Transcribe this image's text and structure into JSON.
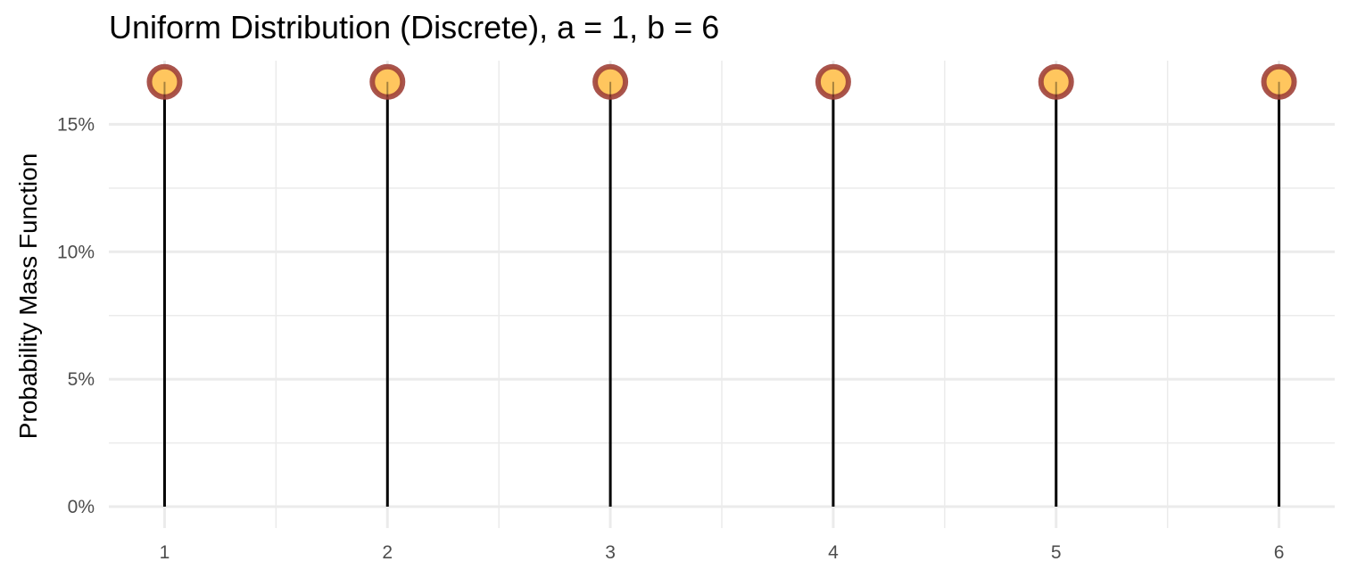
{
  "chart_data": {
    "type": "lollipop",
    "title": "Uniform Distribution (Discrete), a = 1, b = 6",
    "xlabel": "",
    "ylabel": "Probability Mass Function",
    "x": [
      1,
      2,
      3,
      4,
      5,
      6
    ],
    "values": [
      0.1667,
      0.1667,
      0.1667,
      0.1667,
      0.1667,
      0.1667
    ],
    "x_ticks": [
      "1",
      "2",
      "3",
      "4",
      "5",
      "6"
    ],
    "y_ticks": [
      0,
      0.05,
      0.1,
      0.15
    ],
    "y_tick_labels": [
      "0%",
      "5%",
      "10%",
      "15%"
    ],
    "xlim": [
      0.75,
      6.25
    ],
    "ylim": [
      0,
      0.175
    ],
    "grid": true,
    "legend": "none",
    "colors": {
      "point_fill": "#FFC65E",
      "point_stroke": "#A0413A",
      "stem": "#000000",
      "grid": "#EBEBEB"
    }
  }
}
